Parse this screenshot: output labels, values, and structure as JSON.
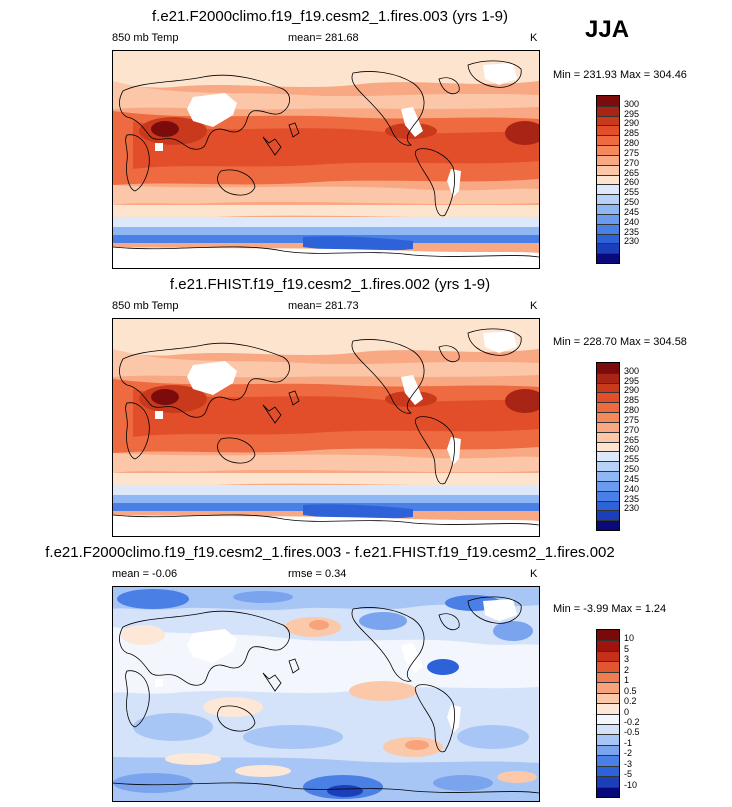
{
  "season": "JJA",
  "palette_temp": [
    "#0a0a7a",
    "#1b3fb8",
    "#2e62d9",
    "#4a7fe6",
    "#6b9bee",
    "#8fb7f3",
    "#b7d1f7",
    "#dde8fb",
    "#fde4cf",
    "#fbc7a8",
    "#f8a882",
    "#f4895e",
    "#ee6a40",
    "#e24e2a",
    "#c93a1c",
    "#a82414",
    "#7c0c0c"
  ],
  "palette_diff": [
    "#08087a",
    "#1b3fb8",
    "#2e62d9",
    "#4a7fe6",
    "#7aa4ee",
    "#a8c6f5",
    "#d4e2fa",
    "#f3f6fd",
    "#fde7d6",
    "#fbc9a9",
    "#f7a37c",
    "#f07c52",
    "#e25531",
    "#c62f1a",
    "#a0140e",
    "#7a0a0a"
  ],
  "panels": [
    {
      "title": "f.e21.F2000climo.f19_f19.cesm2_1.fires.003 (yrs 1-9)",
      "left_label": "850 mb Temp",
      "center_label": "mean= 281.68",
      "right_label": "K",
      "minmax": "Min = 231.93 Max = 304.46",
      "legend_type": "temp",
      "legend_labels": [
        "300",
        "295",
        "290",
        "285",
        "280",
        "275",
        "270",
        "265",
        "260",
        "255",
        "250",
        "245",
        "240",
        "235",
        "230"
      ]
    },
    {
      "title": "f.e21.FHIST.f19_f19.cesm2_1.fires.002 (yrs 1-9)",
      "left_label": "850 mb Temp",
      "center_label": "mean= 281.73",
      "right_label": "K",
      "minmax": "Min = 228.70 Max = 304.58",
      "legend_type": "temp",
      "legend_labels": [
        "300",
        "295",
        "290",
        "285",
        "280",
        "275",
        "270",
        "265",
        "260",
        "255",
        "250",
        "245",
        "240",
        "235",
        "230"
      ]
    },
    {
      "title": "f.e21.F2000climo.f19_f19.cesm2_1.fires.003 - f.e21.FHIST.f19_f19.cesm2_1.fires.002",
      "left_label": "mean =  -0.06",
      "center_label": "rmse =   0.34",
      "right_label": "K",
      "minmax": "Min =  -3.99 Max =   1.24",
      "legend_type": "diff",
      "legend_labels": [
        "10",
        "5",
        "3",
        "2",
        "1",
        "0.5",
        "0.2",
        "0",
        "-0.2",
        "-0.5",
        "-1",
        "-2",
        "-3",
        "-5",
        "-10"
      ]
    }
  ]
}
